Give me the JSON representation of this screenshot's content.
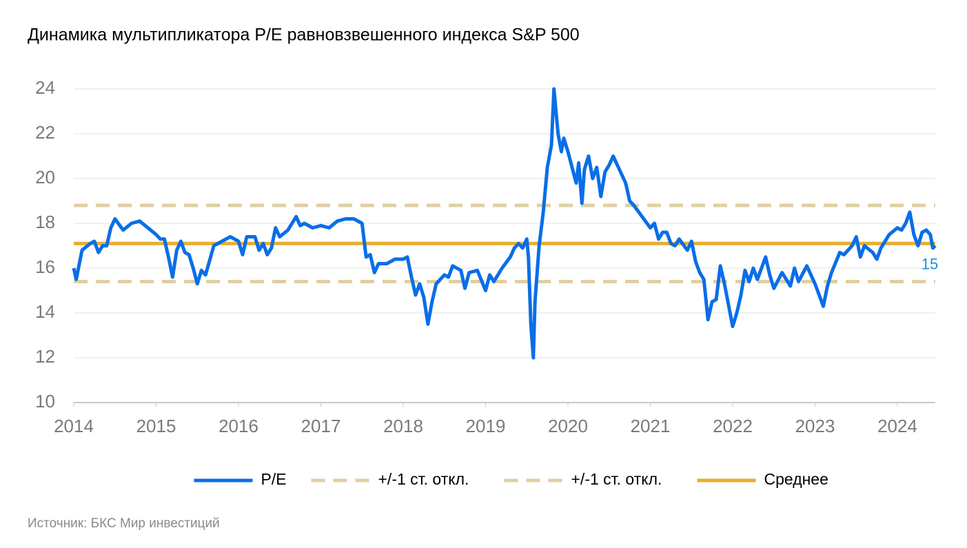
{
  "chart_data": {
    "type": "line",
    "title": "Динамика мультипликатора P/E равновзвешенного индекса S&P 500",
    "source": "Источник: БКС Мир инвестиций",
    "annotation": "15",
    "xlim": [
      2014,
      2024.46
    ],
    "xticks": [
      2014,
      2015,
      2016,
      2017,
      2018,
      2019,
      2020,
      2021,
      2022,
      2023,
      2024
    ],
    "ylim": [
      10,
      24
    ],
    "yticks": [
      10,
      12,
      14,
      16,
      18,
      20,
      22,
      24
    ],
    "grid": true,
    "legend": "bottom",
    "series": [
      {
        "name": "P/E",
        "color": "#0a6ee8",
        "style": "solid",
        "x": [
          2014.0,
          2014.03,
          2014.1,
          2014.2,
          2014.25,
          2014.3,
          2014.35,
          2014.4,
          2014.45,
          2014.5,
          2014.6,
          2014.7,
          2014.8,
          2014.9,
          2015.0,
          2015.05,
          2015.1,
          2015.15,
          2015.2,
          2015.25,
          2015.3,
          2015.35,
          2015.4,
          2015.45,
          2015.5,
          2015.55,
          2015.6,
          2015.7,
          2015.8,
          2015.9,
          2016.0,
          2016.05,
          2016.1,
          2016.2,
          2016.25,
          2016.3,
          2016.35,
          2016.4,
          2016.45,
          2016.5,
          2016.6,
          2016.7,
          2016.75,
          2016.8,
          2016.9,
          2017.0,
          2017.1,
          2017.2,
          2017.3,
          2017.4,
          2017.5,
          2017.55,
          2017.6,
          2017.65,
          2017.7,
          2017.8,
          2017.9,
          2018.0,
          2018.05,
          2018.1,
          2018.15,
          2018.2,
          2018.25,
          2018.3,
          2018.35,
          2018.4,
          2018.5,
          2018.55,
          2018.6,
          2018.7,
          2018.75,
          2018.8,
          2018.9,
          2019.0,
          2019.05,
          2019.1,
          2019.2,
          2019.3,
          2019.35,
          2019.4,
          2019.45,
          2019.5,
          2019.52,
          2019.55,
          2019.58,
          2019.6,
          2019.65,
          2019.7,
          2019.75,
          2019.8,
          2019.83,
          2019.88,
          2019.92,
          2019.95,
          2020.0,
          2020.05,
          2020.1,
          2020.13,
          2020.17,
          2020.2,
          2020.25,
          2020.3,
          2020.35,
          2020.4,
          2020.45,
          2020.5,
          2020.55,
          2020.6,
          2020.7,
          2020.75,
          2020.8,
          2020.9,
          2021.0,
          2021.05,
          2021.1,
          2021.15,
          2021.2,
          2021.25,
          2021.3,
          2021.35,
          2021.45,
          2021.5,
          2021.55,
          2021.6,
          2021.65,
          2021.7,
          2021.75,
          2021.8,
          2021.85,
          2021.9,
          2022.0,
          2022.05,
          2022.1,
          2022.15,
          2022.2,
          2022.25,
          2022.3,
          2022.4,
          2022.45,
          2022.5,
          2022.6,
          2022.7,
          2022.75,
          2022.8,
          2022.9,
          2023.0,
          2023.05,
          2023.1,
          2023.15,
          2023.2,
          2023.3,
          2023.35,
          2023.45,
          2023.5,
          2023.55,
          2023.6,
          2023.7,
          2023.75,
          2023.8,
          2023.9,
          2024.0,
          2024.05,
          2024.1,
          2024.15,
          2024.2,
          2024.25,
          2024.3,
          2024.35,
          2024.4,
          2024.43,
          2024.46
        ],
        "values": [
          16.0,
          15.5,
          16.8,
          17.1,
          17.2,
          16.7,
          17.0,
          17.0,
          17.8,
          18.2,
          17.7,
          18.0,
          18.1,
          17.8,
          17.5,
          17.3,
          17.3,
          16.5,
          15.6,
          16.8,
          17.2,
          16.7,
          16.6,
          16.0,
          15.3,
          15.9,
          15.7,
          17.0,
          17.2,
          17.4,
          17.2,
          16.6,
          17.4,
          17.4,
          16.8,
          17.1,
          16.6,
          16.9,
          17.8,
          17.4,
          17.7,
          18.3,
          17.9,
          18.0,
          17.8,
          17.9,
          17.8,
          18.1,
          18.2,
          18.2,
          18.0,
          16.5,
          16.6,
          15.8,
          16.2,
          16.2,
          16.4,
          16.4,
          16.5,
          15.6,
          14.8,
          15.3,
          14.7,
          13.5,
          14.5,
          15.3,
          15.7,
          15.6,
          16.1,
          15.9,
          15.1,
          15.8,
          15.9,
          15.0,
          15.7,
          15.4,
          16.0,
          16.5,
          16.9,
          17.1,
          16.9,
          17.3,
          16.5,
          13.5,
          12.0,
          14.5,
          17.0,
          18.5,
          20.5,
          21.5,
          24.0,
          22.0,
          21.2,
          21.8,
          21.2,
          20.5,
          19.8,
          20.7,
          18.9,
          20.4,
          21.0,
          20.0,
          20.5,
          19.2,
          20.3,
          20.6,
          21.0,
          20.6,
          19.8,
          19.0,
          18.8,
          18.3,
          17.8,
          18.0,
          17.3,
          17.6,
          17.6,
          17.1,
          17.0,
          17.3,
          16.8,
          17.2,
          16.3,
          15.8,
          15.5,
          13.7,
          14.5,
          14.6,
          16.1,
          15.3,
          13.4,
          14.0,
          14.8,
          15.9,
          15.4,
          16.0,
          15.5,
          16.5,
          15.7,
          15.1,
          15.8,
          15.2,
          16.0,
          15.4,
          16.1,
          15.3,
          14.8,
          14.3,
          15.2,
          15.8,
          16.7,
          16.6,
          17.0,
          17.4,
          16.5,
          17.0,
          16.7,
          16.4,
          16.9,
          17.5,
          17.8,
          17.7,
          18.0,
          18.5,
          17.5,
          17.0,
          17.6,
          17.7,
          17.5,
          16.9,
          17.0
        ]
      },
      {
        "name": "+/-1 ст. откл.",
        "color": "#e0cfa2",
        "style": "dashed",
        "x": [
          2014,
          2024.46
        ],
        "values": [
          18.8,
          18.8
        ]
      },
      {
        "name": "+/-1 ст. откл.",
        "color": "#e0cfa2",
        "style": "dashed",
        "x": [
          2014,
          2024.46
        ],
        "values": [
          15.4,
          15.4
        ]
      },
      {
        "name": "Среднее",
        "color": "#e8ae2e",
        "style": "solid",
        "x": [
          2014,
          2024.46
        ],
        "values": [
          17.1,
          17.1
        ]
      }
    ]
  }
}
